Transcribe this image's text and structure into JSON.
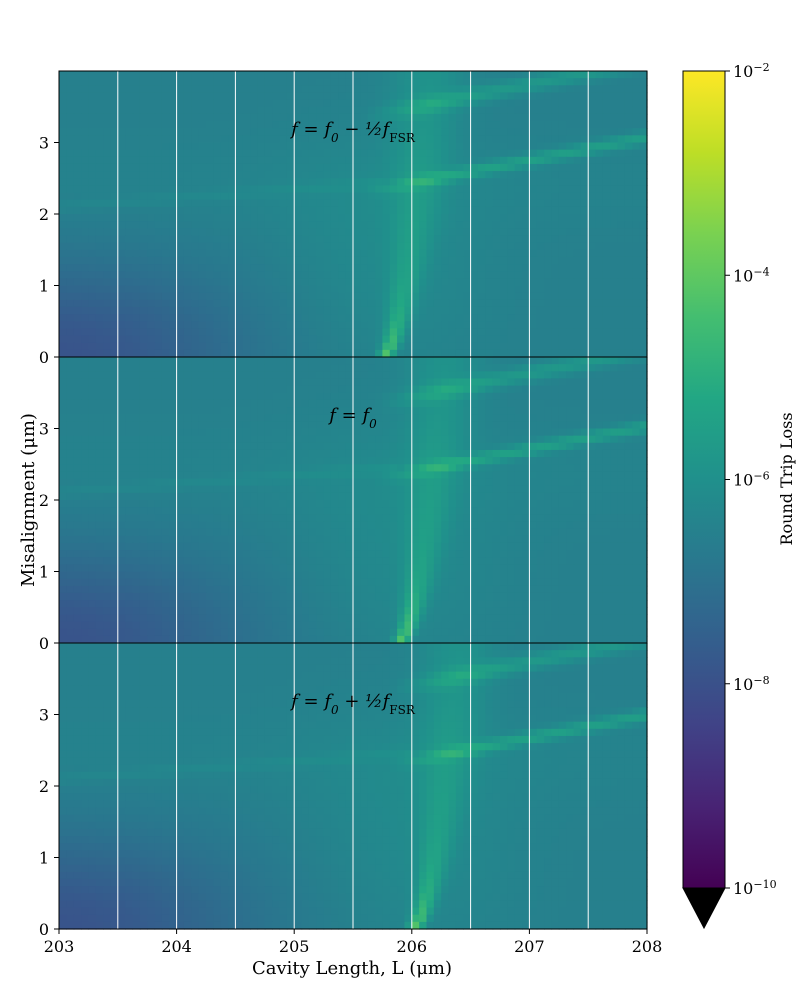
{
  "chart_data": {
    "type": "heatmap",
    "xlabel": "Cavity Length, L (μm)",
    "ylabel": "Misalignment (μm)",
    "xlim": [
      203,
      208
    ],
    "x_ticks": [
      "203",
      "204",
      "205",
      "206",
      "207",
      "208"
    ],
    "x_gridlines": [
      203.5,
      204,
      204.5,
      205,
      205.5,
      206,
      206.5,
      207,
      207.5
    ],
    "grid": "vertical white lines",
    "ylim": [
      0,
      4
    ],
    "y_ticks": [
      "0",
      "1",
      "2",
      "3"
    ],
    "panels": [
      {
        "label_main": "f = f",
        "label_sub": "0",
        "label_tail": " − ½f",
        "label_tail_sub": "FSR",
        "resonance_center": 205.75,
        "resonance_halfwidth_at_top": 0.4
      },
      {
        "label_main": "f = f",
        "label_sub": "0",
        "label_tail": "",
        "label_tail_sub": "",
        "resonance_center": 205.88,
        "resonance_halfwidth_at_top": 0.4
      },
      {
        "label_main": "f = f",
        "label_sub": "0",
        "label_tail": " + ½f",
        "label_tail_sub": "FSR",
        "resonance_center": 206.0,
        "resonance_halfwidth_at_top": 0.4
      }
    ],
    "colorbar": {
      "label": "Round Trip Loss",
      "colormap": "viridis",
      "scale": "log",
      "range": [
        1e-10,
        0.01
      ],
      "tick_base": "10",
      "tick_exponents": [
        "−2",
        "−4",
        "−6",
        "−8",
        "−10"
      ],
      "extend": "min"
    }
  }
}
